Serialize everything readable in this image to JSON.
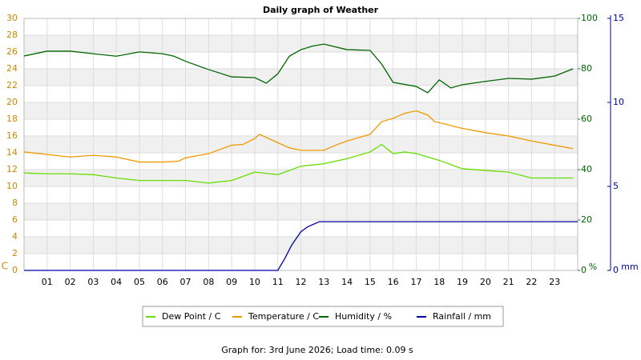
{
  "chart_data": {
    "type": "line",
    "title": "Daily graph of Weather",
    "footer": "Graph for: 3rd June 2026; Load time: 0.09 s",
    "y_unit": "C",
    "y2_unit": "%",
    "y3_unit": "mm",
    "xlim": [
      0,
      24
    ],
    "xticks": [
      {
        "value": 1,
        "label": "01"
      },
      {
        "value": 2,
        "label": "02"
      },
      {
        "value": 3,
        "label": "03"
      },
      {
        "value": 4,
        "label": "04"
      },
      {
        "value": 5,
        "label": "05"
      },
      {
        "value": 6,
        "label": "06"
      },
      {
        "value": 7,
        "label": "07"
      },
      {
        "value": 8,
        "label": "08"
      },
      {
        "value": 9,
        "label": "09"
      },
      {
        "value": 10,
        "label": "10"
      },
      {
        "value": 11,
        "label": "11"
      },
      {
        "value": 12,
        "label": "12"
      },
      {
        "value": 13,
        "label": "13"
      },
      {
        "value": 14,
        "label": "14"
      },
      {
        "value": 15,
        "label": "15"
      },
      {
        "value": 16,
        "label": "16"
      },
      {
        "value": 17,
        "label": "17"
      },
      {
        "value": 18,
        "label": "18"
      },
      {
        "value": 19,
        "label": "19"
      },
      {
        "value": 20,
        "label": "20"
      },
      {
        "value": 21,
        "label": "21"
      },
      {
        "value": 22,
        "label": "22"
      },
      {
        "value": 23,
        "label": "23"
      }
    ],
    "ylim": [
      0,
      30
    ],
    "yticks": [
      0,
      2,
      4,
      6,
      8,
      10,
      12,
      14,
      16,
      18,
      20,
      22,
      24,
      26,
      28,
      30
    ],
    "y2lim": [
      0,
      100
    ],
    "y2ticks": [
      0,
      20,
      40,
      60,
      80,
      100
    ],
    "y3lim": [
      0,
      15
    ],
    "y3ticks": [
      0,
      5,
      10,
      15
    ],
    "grid": true,
    "series": [
      {
        "name": "Dew Point / C",
        "color": "#66dd00",
        "axis": "y",
        "x": [
          0,
          1,
          2,
          3,
          4,
          5,
          6,
          7,
          8,
          9,
          10,
          11,
          12,
          13,
          14,
          15,
          15.5,
          16,
          16.5,
          17,
          18,
          19,
          20,
          21,
          22,
          23,
          23.8
        ],
        "values": [
          11.6,
          11.5,
          11.5,
          11.4,
          11.0,
          10.7,
          10.7,
          10.7,
          10.4,
          10.7,
          11.7,
          11.4,
          12.4,
          12.7,
          13.3,
          14.1,
          15.0,
          13.9,
          14.1,
          13.9,
          13.1,
          12.1,
          11.9,
          11.7,
          11.0,
          11.0,
          11.0
        ]
      },
      {
        "name": "Temperature / C",
        "color": "#ee9900",
        "axis": "y",
        "x": [
          0,
          2,
          3,
          4,
          5,
          6,
          6.7,
          7,
          8,
          9,
          9.5,
          10,
          10.2,
          11,
          11.5,
          12,
          13,
          13.5,
          14,
          15,
          15.5,
          16,
          16.5,
          17,
          17.5,
          17.8,
          18,
          19,
          20,
          21,
          22,
          23,
          23.8
        ],
        "values": [
          14.1,
          13.5,
          13.7,
          13.5,
          12.9,
          12.9,
          13.0,
          13.4,
          13.9,
          14.9,
          15.0,
          15.7,
          16.2,
          15.2,
          14.6,
          14.3,
          14.3,
          14.9,
          15.4,
          16.2,
          17.7,
          18.1,
          18.7,
          19.0,
          18.5,
          17.7,
          17.6,
          16.9,
          16.4,
          16.0,
          15.4,
          14.9,
          14.5
        ]
      },
      {
        "name": "Humidity / %",
        "color": "#006600",
        "axis": "y2",
        "x": [
          0,
          1,
          2,
          3,
          4,
          5,
          6,
          6.5,
          7,
          8,
          9,
          10,
          10.5,
          11,
          11.5,
          12,
          12.5,
          13,
          14,
          15,
          15.5,
          16,
          17,
          17.5,
          18,
          18.5,
          19,
          20,
          21,
          22,
          23,
          23.8
        ],
        "values": [
          85.1,
          87,
          87,
          86,
          85,
          86.7,
          86,
          85,
          83,
          79.7,
          76.8,
          76.5,
          74.3,
          78,
          85,
          87.6,
          89,
          89.8,
          87.6,
          87.3,
          81.9,
          74.6,
          73,
          70.5,
          75.6,
          72.4,
          73.7,
          75,
          76.2,
          75.9,
          77.1,
          80
        ]
      },
      {
        "name": "Rainfall / mm",
        "color": "#0000aa",
        "axis": "y3",
        "x": [
          0,
          11,
          11.3,
          11.6,
          12,
          12.3,
          12.8,
          24
        ],
        "values": [
          0,
          0,
          0.7,
          1.5,
          2.3,
          2.6,
          2.9,
          2.9
        ]
      }
    ]
  }
}
